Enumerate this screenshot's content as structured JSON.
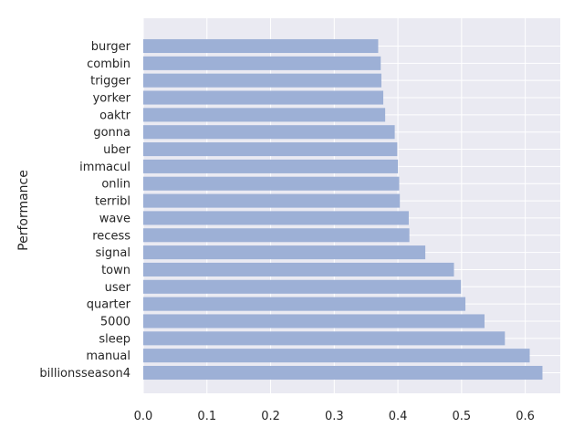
{
  "chart_data": {
    "type": "bar",
    "orientation": "horizontal",
    "categories": [
      "burger",
      "combin",
      "trigger",
      "yorker",
      "oaktr",
      "gonna",
      "uber",
      "immacul",
      "onlin",
      "terribl",
      "wave",
      "recess",
      "signal",
      "town",
      "user",
      "quarter",
      "5000",
      "sleep",
      "manual",
      "billionsseason4"
    ],
    "values": [
      0.369,
      0.373,
      0.374,
      0.377,
      0.38,
      0.395,
      0.399,
      0.4,
      0.402,
      0.403,
      0.417,
      0.418,
      0.443,
      0.488,
      0.499,
      0.506,
      0.536,
      0.568,
      0.607,
      0.627
    ],
    "title": "",
    "xlabel": "",
    "ylabel": "Performance",
    "xlim": [
      0,
      0.655
    ],
    "xticks": [
      "0.0",
      "0.1",
      "0.2",
      "0.3",
      "0.4",
      "0.5",
      "0.6"
    ],
    "grid": true,
    "colors": {
      "background": "#eaeaf2",
      "bar": "#9db0d6",
      "grid": "#ffffff",
      "text": "#262626"
    }
  }
}
